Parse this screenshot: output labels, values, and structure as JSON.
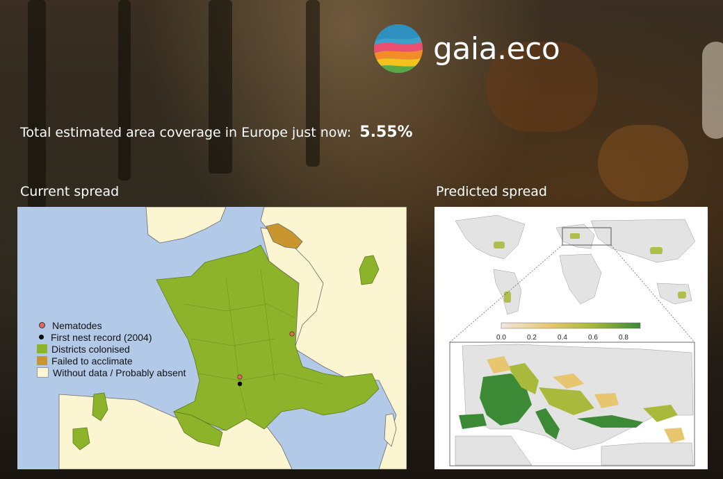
{
  "brand": {
    "name": "gaia.eco",
    "logo_icon": "gaia-logo-icon"
  },
  "coverage": {
    "label": "Total estimated area coverage in Europe just now:",
    "value": "5.55%"
  },
  "current_spread": {
    "title": "Current spread",
    "legend": [
      {
        "label": "Nematodes",
        "swatch": "dot",
        "color": "#e8685a"
      },
      {
        "label": "First nest record (2004)",
        "swatch": "dot",
        "color": "#000000"
      },
      {
        "label": "Districts colonised",
        "swatch": "box",
        "color": "#8db32a"
      },
      {
        "label": "Failed to acclimate",
        "swatch": "box",
        "color": "#c8952e"
      },
      {
        "label": "Without data / Probably absent",
        "swatch": "box",
        "color": "#fbf5d2"
      }
    ]
  },
  "predicted_spread": {
    "title": "Predicted spread",
    "scale_ticks": [
      "0.0",
      "0.2",
      "0.4",
      "0.6",
      "0.8"
    ],
    "scale_colors": [
      "#f2e6dc",
      "#e8c670",
      "#a9b93c",
      "#3c8a36"
    ]
  }
}
